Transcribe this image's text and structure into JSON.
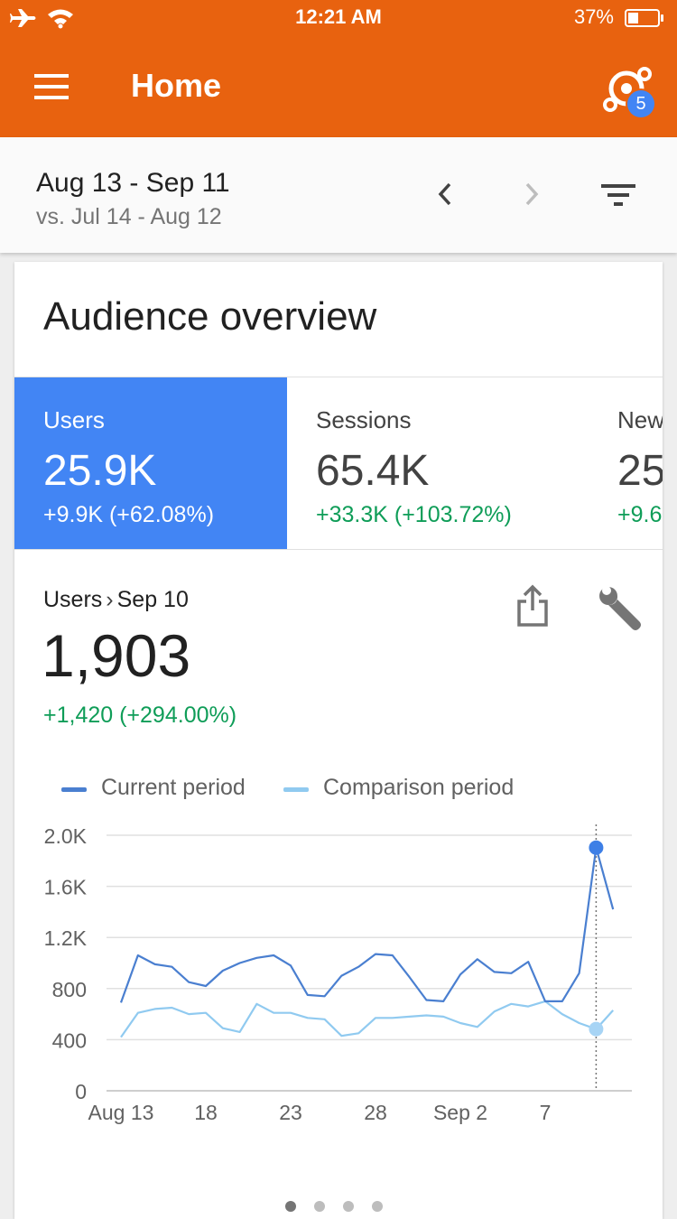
{
  "status_bar": {
    "time": "12:21 AM",
    "battery_percent": "37%",
    "battery_level": 0.37,
    "icons": [
      "airplane-icon",
      "wifi-icon",
      "battery-icon"
    ]
  },
  "app_bar": {
    "title": "Home",
    "menu_icon": "menu-icon",
    "insights_icon": "insights-icon",
    "insights_badge": "5"
  },
  "date_range": {
    "current": "Aug 13 - Sep 11",
    "comparison": "vs. Jul 14 - Aug 12",
    "icons": [
      "chevron-left-icon",
      "chevron-right-icon",
      "filter-icon"
    ]
  },
  "card": {
    "title": "Audience overview",
    "metrics": [
      {
        "label": "Users",
        "value": "25.9K",
        "change": "+9.9K (+62.08%)",
        "active": true
      },
      {
        "label": "Sessions",
        "value": "65.4K",
        "change": "+33.3K (+103.72%)",
        "active": false
      },
      {
        "label": "New",
        "value": "25",
        "change": "+9.6",
        "active": false
      }
    ],
    "detail": {
      "metric": "Users",
      "separator": "›",
      "date": "Sep 10",
      "value": "1,903",
      "change": "+1,420 (+294.00%)",
      "icons": [
        "share-icon",
        "wrench-icon"
      ]
    },
    "pager_dots": 4,
    "pager_active": 0
  },
  "colors": {
    "brand_orange": "#e8620f",
    "active_blue": "#4285f4",
    "positive_green": "#0f9d58",
    "current_line": "#4a7fd0",
    "comparison_line": "#90caf0"
  },
  "chart_data": {
    "type": "line",
    "legend": [
      "Current period",
      "Comparison period"
    ],
    "x_tick_labels": [
      "Aug 13",
      "18",
      "23",
      "28",
      "Sep 2",
      "7"
    ],
    "x_tick_index": [
      0,
      5,
      10,
      15,
      20,
      25
    ],
    "y_tick_labels": [
      "2.0K",
      "1.6K",
      "1.2K",
      "800",
      "400",
      "0"
    ],
    "ylim": [
      0,
      2000
    ],
    "y_ticks": [
      2000,
      1600,
      1200,
      800,
      400,
      0
    ],
    "grid": true,
    "highlight_index": 28,
    "series": [
      {
        "name": "Current period",
        "values": [
          690,
          1060,
          990,
          970,
          850,
          820,
          940,
          1000,
          1040,
          1060,
          980,
          750,
          740,
          900,
          970,
          1070,
          1060,
          890,
          710,
          700,
          910,
          1030,
          930,
          920,
          1010,
          700,
          700,
          920,
          1903,
          1420
        ]
      },
      {
        "name": "Comparison period",
        "values": [
          420,
          610,
          640,
          650,
          600,
          610,
          490,
          460,
          680,
          610,
          610,
          570,
          560,
          430,
          450,
          570,
          570,
          580,
          590,
          580,
          530,
          500,
          620,
          680,
          660,
          700,
          600,
          530,
          483,
          630
        ]
      }
    ]
  }
}
